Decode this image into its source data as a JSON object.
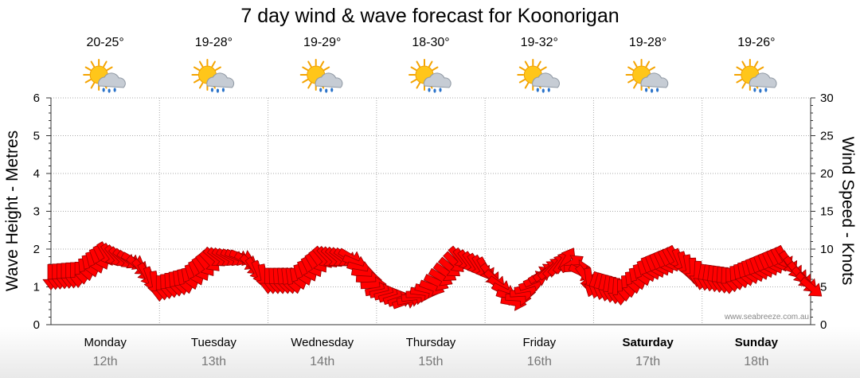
{
  "chart_data": {
    "type": "line",
    "title": "7 day wind & wave forecast for Koonorigan",
    "ylabel": "Wave Height - Metres",
    "y2label": "Wind Speed - Knots",
    "ylim": [
      0,
      6
    ],
    "y2lim": [
      0,
      30
    ],
    "yticks": [
      0,
      1,
      2,
      3,
      4,
      5,
      6
    ],
    "y2ticks": [
      0,
      5,
      10,
      15,
      20,
      25,
      30
    ],
    "grid": true,
    "days": [
      {
        "name": "Monday",
        "date": "12th",
        "temp": "20-25°",
        "icon": "partly-cloudy-showers-icon",
        "bold": false
      },
      {
        "name": "Tuesday",
        "date": "13th",
        "temp": "19-28°",
        "icon": "partly-cloudy-showers-icon",
        "bold": false
      },
      {
        "name": "Wednesday",
        "date": "14th",
        "temp": "19-29°",
        "icon": "partly-cloudy-showers-icon",
        "bold": false
      },
      {
        "name": "Thursday",
        "date": "15th",
        "temp": "18-30°",
        "icon": "partly-cloudy-showers-icon",
        "bold": false
      },
      {
        "name": "Friday",
        "date": "16th",
        "temp": "19-32°",
        "icon": "partly-cloudy-showers-icon",
        "bold": false
      },
      {
        "name": "Saturday",
        "date": "17th",
        "temp": "19-28°",
        "icon": "partly-cloudy-showers-icon",
        "bold": true
      },
      {
        "name": "Sunday",
        "date": "18th",
        "temp": "19-26°",
        "icon": "partly-cloudy-showers-icon",
        "bold": true
      }
    ],
    "series": [
      {
        "name": "Wind",
        "axis": "right",
        "x_hours": [
          0,
          6,
          12,
          18,
          24,
          30,
          36,
          42,
          48,
          54,
          60,
          66,
          72,
          78,
          84,
          90,
          96,
          102,
          108,
          114,
          120,
          126,
          132,
          138,
          144,
          150,
          156,
          162,
          168
        ],
        "values": [
          6.5,
          6.8,
          9.5,
          8.5,
          5.0,
          6.0,
          9.0,
          9.0,
          6.0,
          6.0,
          9.0,
          9.0,
          4.5,
          3.0,
          5.0,
          9.0,
          7.5,
          3.0,
          6.5,
          8.5,
          5.5,
          4.5,
          7.5,
          9.0,
          6.5,
          6.0,
          7.5,
          9.0,
          5.0
        ],
        "direction_deg": [
          180,
          180,
          150,
          120,
          180,
          170,
          130,
          110,
          180,
          170,
          140,
          120,
          80,
          70,
          110,
          140,
          150,
          100,
          60,
          30,
          200,
          180,
          160,
          150,
          190,
          180,
          160,
          150,
          130
        ],
        "color": "#ff0000"
      }
    ]
  },
  "credit": "www.seabreeze.com.au"
}
